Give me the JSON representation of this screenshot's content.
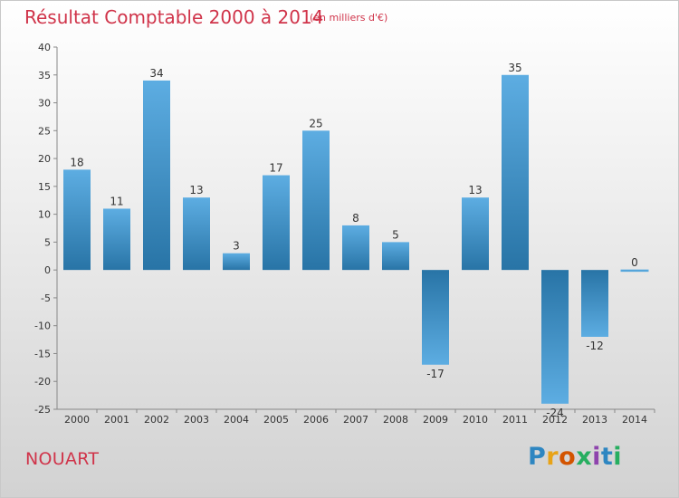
{
  "header": {
    "title": "Résultat Comptable 2000 à 2014",
    "subtitle": "(en milliers d'€)"
  },
  "footer": {
    "commune": "NOUART",
    "logo_letters": [
      "P",
      "r",
      "o",
      "x",
      "i",
      "t",
      "i"
    ],
    "logo_colors": [
      "#2e86c1",
      "#e8a317",
      "#d35400",
      "#27ae60",
      "#8e44ad",
      "#2e86c1",
      "#27ae60"
    ]
  },
  "chart_data": {
    "type": "bar",
    "title": "Résultat Comptable 2000 à 2014",
    "subtitle": "(en milliers d'€)",
    "categories": [
      "2000",
      "2001",
      "2002",
      "2003",
      "2004",
      "2005",
      "2006",
      "2007",
      "2008",
      "2009",
      "2010",
      "2011",
      "2012",
      "2013",
      "2014"
    ],
    "values": [
      18,
      11,
      34,
      13,
      3,
      17,
      25,
      8,
      5,
      -17,
      13,
      35,
      -24,
      -12,
      0
    ],
    "value_labels": [
      "18",
      "11",
      "34",
      "13",
      "3",
      "17",
      "25",
      "8",
      "5",
      "-17",
      "13",
      "35",
      "-24",
      "-12",
      "0"
    ],
    "ylim": [
      -25,
      40
    ],
    "yticks": [
      40,
      35,
      30,
      25,
      20,
      15,
      10,
      5,
      0,
      -5,
      -10,
      -15,
      -20,
      -25
    ],
    "grid": false,
    "bar_color_light": "#5dade2",
    "bar_color_dark": "#2874a6"
  }
}
